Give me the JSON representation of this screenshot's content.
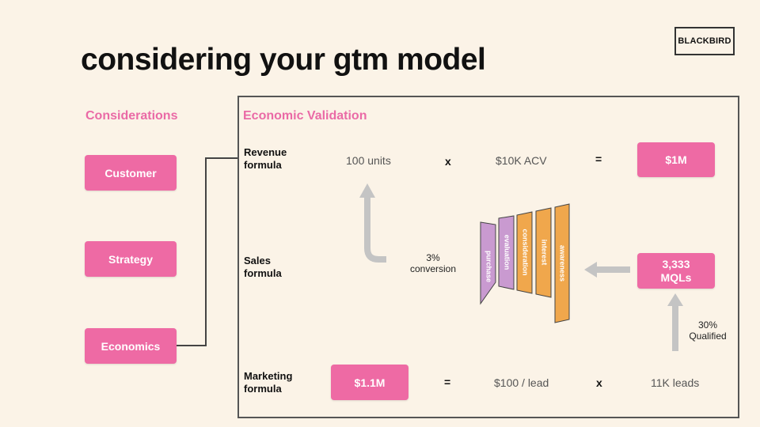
{
  "title": "considering your gtm model",
  "logo": "BLACKBIRD",
  "considerations": {
    "heading": "Considerations",
    "items": [
      "Customer",
      "Strategy",
      "Economics"
    ]
  },
  "economic": {
    "heading": "Economic Validation",
    "revenue": {
      "label_line1": "Revenue",
      "label_line2": "formula",
      "units": "100 units",
      "times": "x",
      "acv": "$10K ACV",
      "equals": "=",
      "result": "$1M"
    },
    "sales": {
      "label_line1": "Sales",
      "label_line2": "formula",
      "conversion_line1": "3%",
      "conversion_line2": "conversion",
      "mqls_line1": "3,333",
      "mqls_line2": "MQLs",
      "qualified_line1": "30%",
      "qualified_line2": "Qualified",
      "funnel": [
        "purchase",
        "evaluation",
        "consideration",
        "interest",
        "awareness"
      ]
    },
    "marketing": {
      "label_line1": "Marketing",
      "label_line2": "formula",
      "result": "$1.1M",
      "equals": "=",
      "per_lead": "$100 / lead",
      "times": "x",
      "leads": "11K leads"
    }
  },
  "colors": {
    "background": "#fbf3e7",
    "accent_pink": "#ee6aa4",
    "heading_pink": "#ea6aa6",
    "funnel_purple": "#c99ad0",
    "funnel_orange": "#f0a74c",
    "arrow_grey": "#c4c4c4"
  },
  "icons": {
    "up_arrow": "arrow-up-icon",
    "left_arrow": "arrow-left-icon",
    "curved_arrow": "curved-arrow-up-icon"
  }
}
